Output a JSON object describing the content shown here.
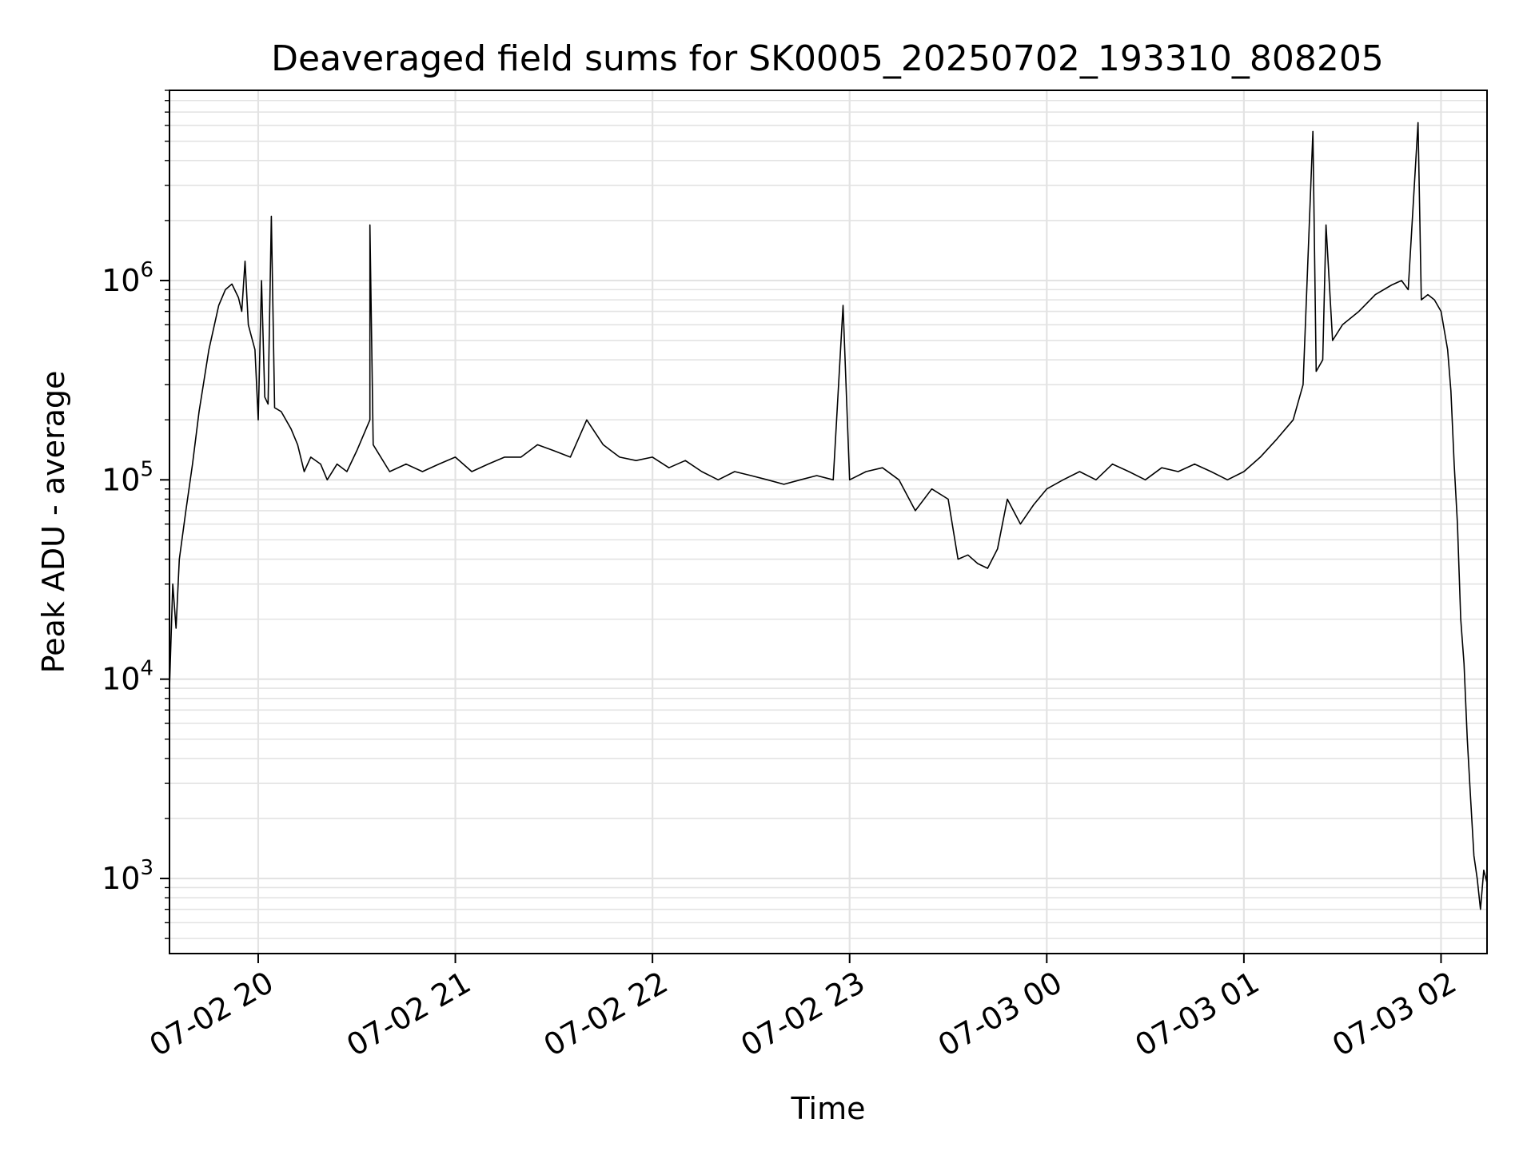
{
  "chart_data": {
    "type": "line",
    "title": "Deaveraged field sums for SK0005_20250702_193310_808205",
    "xlabel": "Time",
    "ylabel": "Peak ADU - average",
    "y_scale": "log",
    "ylim": [
      420,
      9000000
    ],
    "xlim": [
      "07-02 19:33",
      "07-03 02:14"
    ],
    "grid": true,
    "line_color": "#000000",
    "x_ticks": [
      "07-02 20",
      "07-02 21",
      "07-02 22",
      "07-02 23",
      "07-03 00",
      "07-03 01",
      "07-03 02"
    ],
    "y_ticks": [
      {
        "base": "10",
        "exp": "3",
        "value": 1000
      },
      {
        "base": "10",
        "exp": "4",
        "value": 10000
      },
      {
        "base": "10",
        "exp": "5",
        "value": 100000
      },
      {
        "base": "10",
        "exp": "6",
        "value": 1000000
      }
    ],
    "series": [
      {
        "points": [
          [
            "07-02 19:33",
            9000
          ],
          [
            "07-02 19:34",
            30000
          ],
          [
            "07-02 19:35",
            18000
          ],
          [
            "07-02 19:36",
            40000
          ],
          [
            "07-02 19:38",
            70000
          ],
          [
            "07-02 19:40",
            120000
          ],
          [
            "07-02 19:42",
            220000
          ],
          [
            "07-02 19:45",
            450000
          ],
          [
            "07-02 19:48",
            750000
          ],
          [
            "07-02 19:50",
            900000
          ],
          [
            "07-02 19:52",
            960000
          ],
          [
            "07-02 19:54",
            820000
          ],
          [
            "07-02 19:55",
            700000
          ],
          [
            "07-02 19:56",
            1250000
          ],
          [
            "07-02 19:57",
            600000
          ],
          [
            "07-02 19:58",
            520000
          ],
          [
            "07-02 19:59",
            450000
          ],
          [
            "07-02 20:00",
            200000
          ],
          [
            "07-02 20:01",
            1000000
          ],
          [
            "07-02 20:02",
            260000
          ],
          [
            "07-02 20:03",
            240000
          ],
          [
            "07-02 20:04",
            2100000
          ],
          [
            "07-02 20:05",
            230000
          ],
          [
            "07-02 20:07",
            220000
          ],
          [
            "07-02 20:10",
            180000
          ],
          [
            "07-02 20:12",
            150000
          ],
          [
            "07-02 20:14",
            110000
          ],
          [
            "07-02 20:16",
            130000
          ],
          [
            "07-02 20:19",
            120000
          ],
          [
            "07-02 20:21",
            100000
          ],
          [
            "07-02 20:24",
            120000
          ],
          [
            "07-02 20:27",
            110000
          ],
          [
            "07-02 20:30",
            140000
          ],
          [
            "07-02 20:34",
            200000
          ],
          [
            "07-02 20:34",
            1900000
          ],
          [
            "07-02 20:35",
            150000
          ],
          [
            "07-02 20:40",
            110000
          ],
          [
            "07-02 20:45",
            120000
          ],
          [
            "07-02 20:50",
            110000
          ],
          [
            "07-02 20:55",
            120000
          ],
          [
            "07-02 21:00",
            130000
          ],
          [
            "07-02 21:05",
            110000
          ],
          [
            "07-02 21:10",
            120000
          ],
          [
            "07-02 21:15",
            130000
          ],
          [
            "07-02 21:20",
            130000
          ],
          [
            "07-02 21:25",
            150000
          ],
          [
            "07-02 21:30",
            140000
          ],
          [
            "07-02 21:35",
            130000
          ],
          [
            "07-02 21:40",
            200000
          ],
          [
            "07-02 21:45",
            150000
          ],
          [
            "07-02 21:50",
            130000
          ],
          [
            "07-02 21:55",
            125000
          ],
          [
            "07-02 22:00",
            130000
          ],
          [
            "07-02 22:05",
            115000
          ],
          [
            "07-02 22:10",
            125000
          ],
          [
            "07-02 22:15",
            110000
          ],
          [
            "07-02 22:20",
            100000
          ],
          [
            "07-02 22:25",
            110000
          ],
          [
            "07-02 22:30",
            105000
          ],
          [
            "07-02 22:35",
            100000
          ],
          [
            "07-02 22:40",
            95000
          ],
          [
            "07-02 22:45",
            100000
          ],
          [
            "07-02 22:50",
            105000
          ],
          [
            "07-02 22:55",
            100000
          ],
          [
            "07-02 22:58",
            750000
          ],
          [
            "07-02 23:00",
            100000
          ],
          [
            "07-02 23:05",
            110000
          ],
          [
            "07-02 23:10",
            115000
          ],
          [
            "07-02 23:15",
            100000
          ],
          [
            "07-02 23:20",
            70000
          ],
          [
            "07-02 23:25",
            90000
          ],
          [
            "07-02 23:30",
            80000
          ],
          [
            "07-02 23:33",
            40000
          ],
          [
            "07-02 23:36",
            42000
          ],
          [
            "07-02 23:39",
            38000
          ],
          [
            "07-02 23:42",
            36000
          ],
          [
            "07-02 23:45",
            45000
          ],
          [
            "07-02 23:48",
            80000
          ],
          [
            "07-02 23:52",
            60000
          ],
          [
            "07-02 23:56",
            75000
          ],
          [
            "07-03 00:00",
            90000
          ],
          [
            "07-03 00:05",
            100000
          ],
          [
            "07-03 00:10",
            110000
          ],
          [
            "07-03 00:15",
            100000
          ],
          [
            "07-03 00:20",
            120000
          ],
          [
            "07-03 00:25",
            110000
          ],
          [
            "07-03 00:30",
            100000
          ],
          [
            "07-03 00:35",
            115000
          ],
          [
            "07-03 00:40",
            110000
          ],
          [
            "07-03 00:45",
            120000
          ],
          [
            "07-03 00:50",
            110000
          ],
          [
            "07-03 00:55",
            100000
          ],
          [
            "07-03 01:00",
            110000
          ],
          [
            "07-03 01:05",
            130000
          ],
          [
            "07-03 01:10",
            160000
          ],
          [
            "07-03 01:15",
            200000
          ],
          [
            "07-03 01:18",
            300000
          ],
          [
            "07-03 01:21",
            5600000
          ],
          [
            "07-03 01:22",
            350000
          ],
          [
            "07-03 01:24",
            400000
          ],
          [
            "07-03 01:25",
            1900000
          ],
          [
            "07-03 01:27",
            500000
          ],
          [
            "07-03 01:30",
            600000
          ],
          [
            "07-03 01:35",
            700000
          ],
          [
            "07-03 01:40",
            850000
          ],
          [
            "07-03 01:45",
            950000
          ],
          [
            "07-03 01:48",
            1000000
          ],
          [
            "07-03 01:50",
            900000
          ],
          [
            "07-03 01:53",
            6200000
          ],
          [
            "07-03 01:54",
            800000
          ],
          [
            "07-03 01:56",
            850000
          ],
          [
            "07-03 01:58",
            800000
          ],
          [
            "07-03 02:00",
            700000
          ],
          [
            "07-03 02:02",
            450000
          ],
          [
            "07-03 02:03",
            280000
          ],
          [
            "07-03 02:04",
            120000
          ],
          [
            "07-03 02:05",
            60000
          ],
          [
            "07-03 02:06",
            20000
          ],
          [
            "07-03 02:07",
            12000
          ],
          [
            "07-03 02:08",
            5000
          ],
          [
            "07-03 02:09",
            2500
          ],
          [
            "07-03 02:10",
            1300
          ],
          [
            "07-03 02:11",
            1000
          ],
          [
            "07-03 02:12",
            700
          ],
          [
            "07-03 02:13",
            1100
          ],
          [
            "07-03 02:14",
            950
          ]
        ]
      }
    ]
  }
}
